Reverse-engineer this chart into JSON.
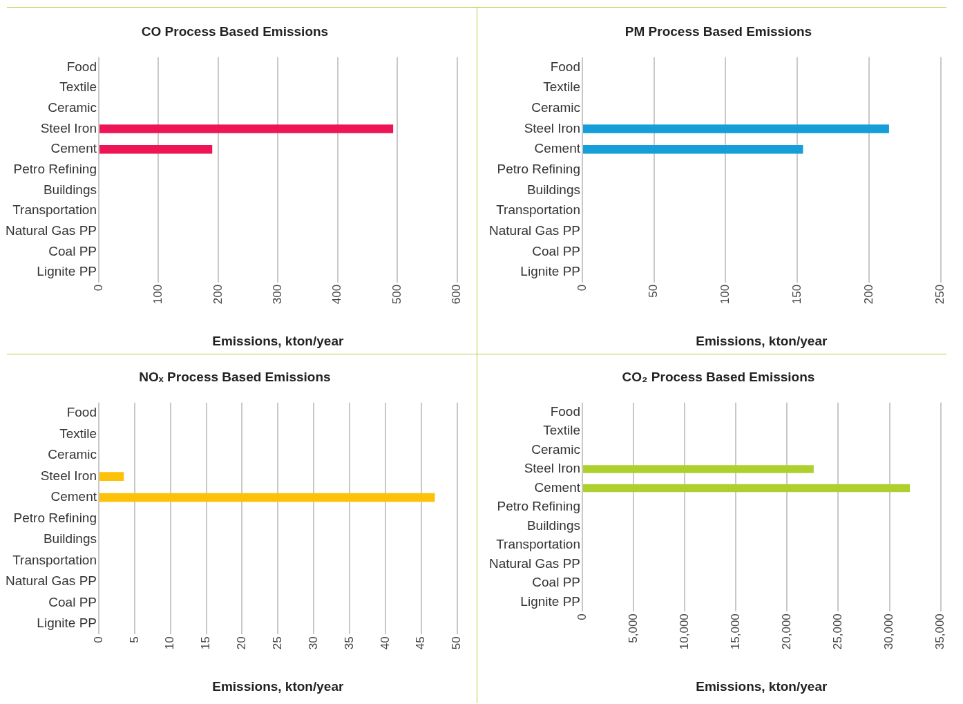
{
  "chart_data": [
    {
      "type": "bar",
      "orientation": "horizontal",
      "title": "CO Process Based Emissions",
      "xlabel": "Emissions, kton/year",
      "categories": [
        "Food",
        "Textile",
        "Ceramic",
        "Steel Iron",
        "Cement",
        "Petro Refining",
        "Buildings",
        "Transportation",
        "Natural Gas PP",
        "Coal PP",
        "Lignite PP"
      ],
      "values": [
        0,
        0,
        0,
        493,
        190,
        0,
        0,
        0,
        0,
        0,
        0
      ],
      "color": "#ee1556",
      "xlim": [
        0,
        600
      ],
      "xticks": [
        0,
        100,
        200,
        300,
        400,
        500,
        600
      ],
      "grid": "x"
    },
    {
      "type": "bar",
      "orientation": "horizontal",
      "title": "PM Process Based Emissions",
      "xlabel": "Emissions, kton/year",
      "categories": [
        "Food",
        "Textile",
        "Ceramic",
        "Steel Iron",
        "Cement",
        "Petro Refining",
        "Buildings",
        "Transportation",
        "Natural Gas PP",
        "Coal PP",
        "Lignite PP"
      ],
      "values": [
        0,
        0,
        0,
        214,
        154,
        0,
        0,
        0,
        0,
        0,
        0
      ],
      "color": "#159ed8",
      "xlim": [
        0,
        250
      ],
      "xticks": [
        0,
        50,
        100,
        150,
        200,
        250
      ],
      "grid": "x"
    },
    {
      "type": "bar",
      "orientation": "horizontal",
      "title": "NOₓ Process Based Emissions",
      "xlabel": "Emissions, kton/year",
      "categories": [
        "Food",
        "Textile",
        "Ceramic",
        "Steel Iron",
        "Cement",
        "Petro Refining",
        "Buildings",
        "Transportation",
        "Natural Gas PP",
        "Coal PP",
        "Lignite PP"
      ],
      "values": [
        0,
        0,
        0,
        3.5,
        46.9,
        0,
        0,
        0,
        0,
        0,
        0
      ],
      "color": "#fcc20a",
      "xlim": [
        0,
        50
      ],
      "xticks": [
        0,
        5,
        10,
        15,
        20,
        25,
        30,
        35,
        40,
        45,
        50
      ],
      "grid": "x"
    },
    {
      "type": "bar",
      "orientation": "horizontal",
      "title": "CO₂ Process Based Emissions",
      "xlabel": "Emissions, kton/year",
      "categories": [
        "Food",
        "Textile",
        "Ceramic",
        "Steel Iron",
        "Cement",
        "Petro Refining",
        "Buildings",
        "Transportation",
        "Natural Gas PP",
        "Coal PP",
        "Lignite PP"
      ],
      "values": [
        0,
        0,
        0,
        22600,
        32000,
        0,
        0,
        0,
        0,
        0,
        0
      ],
      "color": "#aed02f",
      "xlim": [
        0,
        35000
      ],
      "xticks": [
        0,
        {
          "value": 5000,
          "label": "5,000"
        },
        {
          "value": 10000,
          "label": "10,000"
        },
        {
          "value": 15000,
          "label": "15,000"
        },
        {
          "value": 20000,
          "label": "20,000"
        },
        {
          "value": 25000,
          "label": "25,000"
        },
        {
          "value": 30000,
          "label": "30,000"
        },
        {
          "value": 35000,
          "label": "35,000"
        }
      ],
      "grid": "x"
    }
  ]
}
